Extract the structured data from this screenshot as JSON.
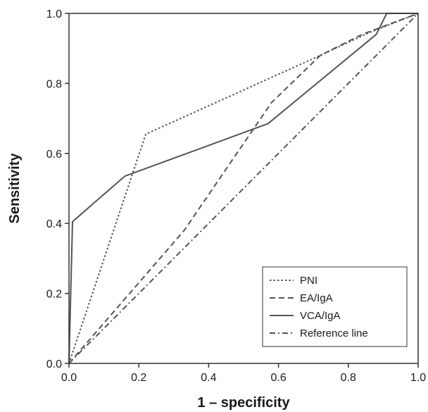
{
  "chart_data": {
    "type": "line",
    "xlabel": "1 – specificity",
    "ylabel": "Sensitivity",
    "xlim": [
      0,
      1
    ],
    "ylim": [
      0,
      1
    ],
    "xticks": [
      "0.0",
      "0.2",
      "0.4",
      "0.6",
      "0.8",
      "1.0"
    ],
    "yticks": [
      "0.0",
      "0.2",
      "0.4",
      "0.6",
      "0.8",
      "1.0"
    ],
    "grid": false,
    "legend_position": "bottom-right",
    "series": [
      {
        "name": "PNI",
        "dash": "dotted",
        "color": "#555555",
        "x": [
          0.0,
          0.22,
          0.72,
          0.86,
          1.0
        ],
        "y": [
          0.0,
          0.655,
          0.88,
          0.945,
          1.0
        ]
      },
      {
        "name": "EA/IgA",
        "dash": "dashed",
        "color": "#555555",
        "x": [
          0.0,
          0.33,
          0.58,
          0.72,
          0.84,
          1.0
        ],
        "y": [
          0.0,
          0.38,
          0.745,
          0.88,
          0.94,
          1.0
        ]
      },
      {
        "name": "VCA/IgA",
        "dash": "solid",
        "color": "#555555",
        "x": [
          0.0,
          0.01,
          0.16,
          0.57,
          0.88,
          0.91,
          1.0
        ],
        "y": [
          0.0,
          0.405,
          0.535,
          0.685,
          0.94,
          1.0,
          1.0
        ]
      },
      {
        "name": "Reference line",
        "dash": "dash-dot",
        "color": "#555555",
        "x": [
          0.0,
          1.0
        ],
        "y": [
          0.0,
          1.0
        ]
      }
    ]
  }
}
